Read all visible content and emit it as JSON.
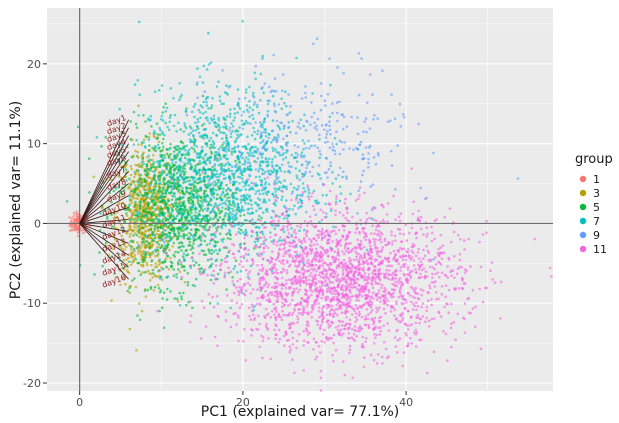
{
  "chart_data": {
    "type": "scatter",
    "title": "",
    "xlabel": "PC1   (explained var= 77.1%)",
    "ylabel": "PC2   (explained var= 11.1%)",
    "xlim": [
      -4,
      58
    ],
    "ylim": [
      -21,
      27
    ],
    "x_ticks": [
      0,
      20,
      40
    ],
    "y_ticks": [
      -20,
      -10,
      0,
      10,
      20
    ],
    "grid": true,
    "legend": {
      "title": "group",
      "position": "right",
      "entries": [
        {
          "label": "1",
          "color": "#f8766d"
        },
        {
          "label": "3",
          "color": "#b79f00"
        },
        {
          "label": "5",
          "color": "#00ba38"
        },
        {
          "label": "7",
          "color": "#00bfc4"
        },
        {
          "label": "9",
          "color": "#619cff"
        },
        {
          "label": "11",
          "color": "#f564e3"
        }
      ]
    },
    "series": [
      {
        "name": "1",
        "color": "#f8766d",
        "center": [
          0,
          0
        ],
        "spread": [
          1,
          1
        ]
      },
      {
        "name": "3",
        "color": "#b79f00",
        "center": [
          8,
          1
        ],
        "spread": [
          3,
          7
        ]
      },
      {
        "name": "5",
        "color": "#00ba38",
        "center": [
          12,
          2
        ],
        "spread": [
          6,
          8
        ]
      },
      {
        "name": "7",
        "color": "#00bfc4",
        "center": [
          18,
          6
        ],
        "spread": [
          9,
          9
        ]
      },
      {
        "name": "9",
        "color": "#619cff",
        "center": [
          28,
          10
        ],
        "spread": [
          10,
          8
        ]
      },
      {
        "name": "11",
        "color": "#f564e3",
        "center": [
          32,
          -7
        ],
        "spread": [
          12,
          7
        ]
      }
    ],
    "loading_vectors": [
      {
        "label": "day1",
        "x": 6,
        "y": 13
      },
      {
        "label": "day2",
        "x": 6,
        "y": 12
      },
      {
        "label": "day3",
        "x": 6,
        "y": 11
      },
      {
        "label": "day4",
        "x": 6,
        "y": 10
      },
      {
        "label": "day5",
        "x": 6,
        "y": 9
      },
      {
        "label": "day6",
        "x": 6,
        "y": 8
      },
      {
        "label": "day7",
        "x": 6,
        "y": 6.5
      },
      {
        "label": "day8",
        "x": 6,
        "y": 5
      },
      {
        "label": "day9",
        "x": 6,
        "y": 3.5
      },
      {
        "label": "day10",
        "x": 6,
        "y": 2
      },
      {
        "label": "day11",
        "x": 6,
        "y": 0.5
      },
      {
        "label": "day12",
        "x": 6,
        "y": -1
      },
      {
        "label": "day13",
        "x": 6,
        "y": -2.5
      },
      {
        "label": "day14",
        "x": 6,
        "y": -4
      },
      {
        "label": "day15",
        "x": 6,
        "y": -5.5
      },
      {
        "label": "day16",
        "x": 6,
        "y": -7
      }
    ]
  }
}
